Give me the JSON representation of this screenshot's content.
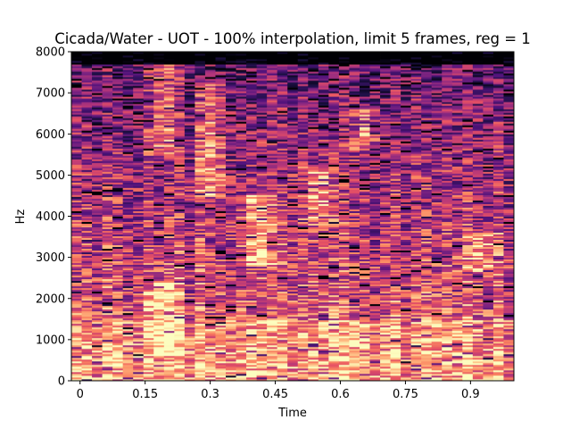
{
  "chart_data": {
    "type": "heatmap",
    "subtype": "spectrogram",
    "title": "Cicada/Water - UOT - 100% interpolation, limit 5 frames, reg = 1",
    "xlabel": "Time",
    "ylabel": "Hz",
    "xlim": [
      -0.02,
      1.0
    ],
    "ylim": [
      0,
      8000
    ],
    "xticks": [
      0,
      0.15,
      0.3,
      0.45,
      0.6,
      0.75,
      0.9
    ],
    "xtick_labels": [
      "0",
      "0.15",
      "0.3",
      "0.45",
      "0.6",
      "0.75",
      "0.9"
    ],
    "yticks": [
      0,
      1000,
      2000,
      3000,
      4000,
      5000,
      6000,
      7000,
      8000
    ],
    "ytick_labels": [
      "0",
      "1000",
      "2000",
      "3000",
      "4000",
      "5000",
      "6000",
      "7000",
      "8000"
    ],
    "colormap": "magma",
    "grid": false,
    "legend": "none",
    "energy_ridges": [
      {
        "t_center": 0.19,
        "freq_low": 5500,
        "freq_high": 7700
      },
      {
        "t_center": 0.3,
        "freq_low": 4500,
        "freq_high": 7200
      },
      {
        "t_center": 0.19,
        "freq_low": 600,
        "freq_high": 2400
      },
      {
        "t_center": 0.41,
        "freq_low": 2800,
        "freq_high": 4500
      },
      {
        "t_center": 0.55,
        "freq_low": 3800,
        "freq_high": 5200
      },
      {
        "t_center": 0.66,
        "freq_low": 5600,
        "freq_high": 6600
      },
      {
        "t_center": 0.93,
        "freq_low": 2600,
        "freq_high": 3600
      }
    ]
  }
}
